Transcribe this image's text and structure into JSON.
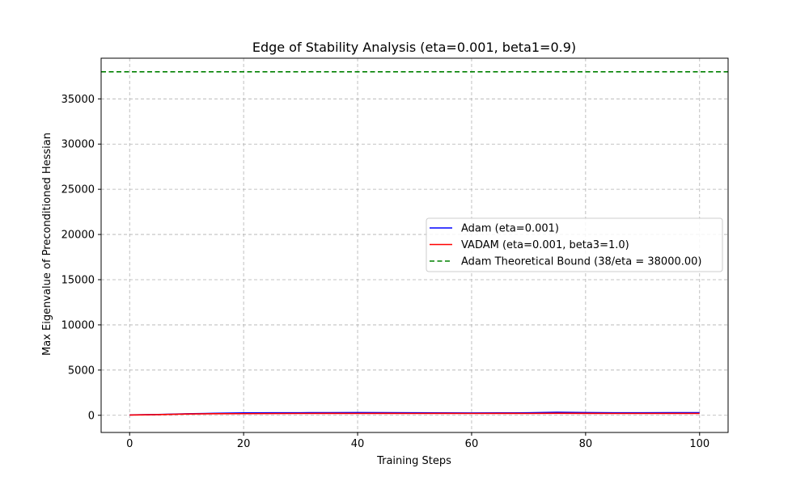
{
  "chart_data": {
    "type": "line",
    "title": "Edge of Stability Analysis (eta=0.001, beta1=0.9)",
    "xlabel": "Training Steps",
    "ylabel": "Max Eigenvalue of Preconditioned Hessian",
    "xlim": [
      -5,
      105
    ],
    "ylim": [
      -1900,
      39500
    ],
    "xticks": [
      0,
      20,
      40,
      60,
      80,
      100
    ],
    "yticks": [
      0,
      5000,
      10000,
      15000,
      20000,
      25000,
      30000,
      35000
    ],
    "grid": true,
    "legend_position": "center-right",
    "x": [
      0,
      5,
      10,
      15,
      20,
      25,
      30,
      35,
      40,
      45,
      50,
      55,
      60,
      65,
      70,
      75,
      80,
      85,
      90,
      95,
      100
    ],
    "series": [
      {
        "name": "Adam (eta=0.001)",
        "color": "#0000ff",
        "style": "solid",
        "values": [
          40,
          80,
          160,
          220,
          260,
          270,
          280,
          290,
          300,
          290,
          270,
          260,
          250,
          260,
          270,
          330,
          300,
          280,
          280,
          290,
          290
        ]
      },
      {
        "name": "VADAM (eta=0.001, beta3=1.0)",
        "color": "#ff0000",
        "style": "solid",
        "values": [
          30,
          70,
          140,
          170,
          180,
          190,
          200,
          205,
          200,
          210,
          200,
          205,
          200,
          210,
          200,
          220,
          210,
          200,
          200,
          200,
          200
        ]
      },
      {
        "name": "Adam Theoretical Bound (38/eta = 38000.00)",
        "color": "#008000",
        "style": "dashed",
        "type": "hline",
        "value": 38000
      }
    ]
  }
}
